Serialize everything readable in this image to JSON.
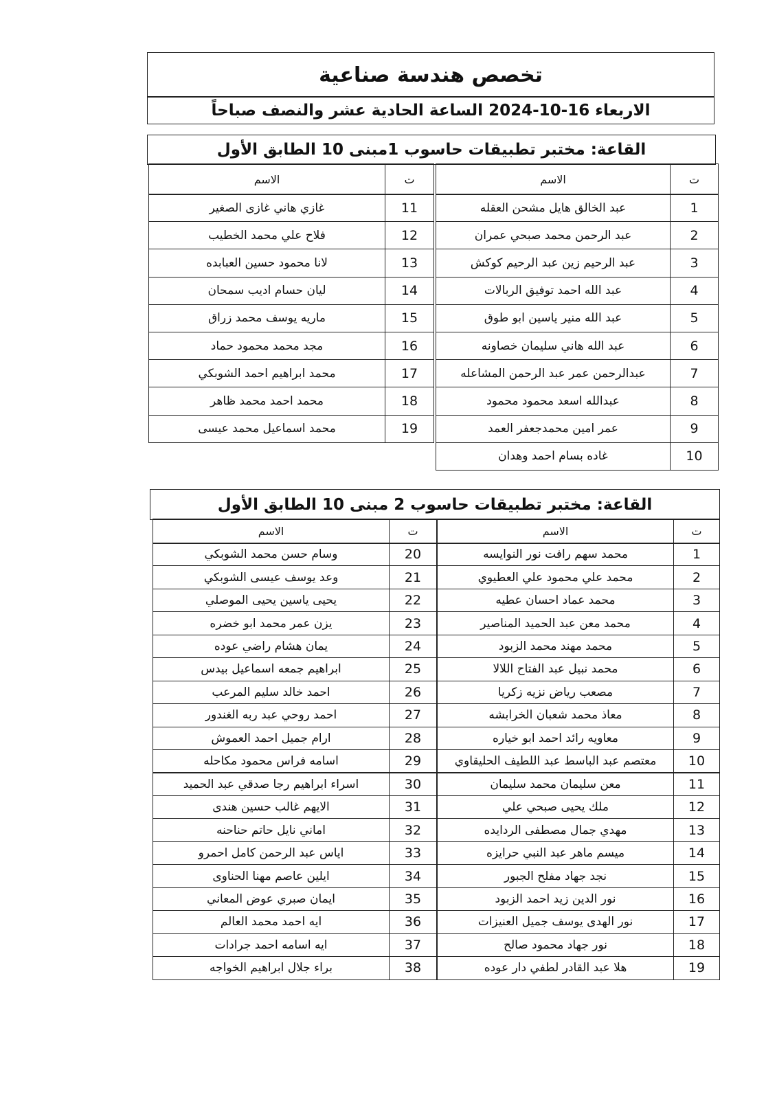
{
  "header": {
    "title": "تخصص هندسة صناعية",
    "subtitle": "الاربعاء 16-10-2024  الساعة الحادية عشر والنصف صباحاً"
  },
  "halls": [
    {
      "title": "القاعة: مختبر تطبيقات حاسوب 1مبنى 10 الطابق الأول",
      "right_header": [
        "ت",
        "الاسم"
      ],
      "left_header": [
        "ت",
        "الاسم"
      ],
      "right": [
        {
          "number": 1,
          "name": "عبد الخالق هايل مشحن العقله"
        },
        {
          "number": 2,
          "name": "عبد الرحمن محمد صبحي عمران"
        },
        {
          "number": 3,
          "name": "عبد الرحيم زين عبد الرحيم كوكش"
        },
        {
          "number": 4,
          "name": "عبد الله احمد توفيق الربالات"
        },
        {
          "number": 5,
          "name": "عبد الله منير ياسين ابو طوق"
        },
        {
          "number": 6,
          "name": "عبد الله هاني سليمان خصاونه"
        },
        {
          "number": 7,
          "name": "عبدالرحمن عمر عبد الرحمن المشاعله"
        },
        {
          "number": 8,
          "name": "عبدالله اسعد محمود محمود"
        },
        {
          "number": 9,
          "name": "عمر امين محمدجعفر العمد"
        },
        {
          "number": 10,
          "name": "غاده بسام احمد وهدان"
        }
      ],
      "left": [
        {
          "number": 11,
          "name": "غازي هاني غازى الصغير"
        },
        {
          "number": 12,
          "name": "فلاح علي محمد الخطيب"
        },
        {
          "number": 13,
          "name": "لانا محمود حسين العبابده"
        },
        {
          "number": 14,
          "name": "ليان حسام اديب سمحان"
        },
        {
          "number": 15,
          "name": "ماريه يوسف محمد زراق"
        },
        {
          "number": 16,
          "name": "مجد محمد محمود حماد"
        },
        {
          "number": 17,
          "name": "محمد ابراهيم احمد الشوبكي"
        },
        {
          "number": 18,
          "name": "محمد احمد محمد ظاهر"
        },
        {
          "number": 19,
          "name": "محمد اسماعيل محمد عيسى"
        }
      ]
    },
    {
      "title": "القاعة: مختبر تطبيقات حاسوب 2 مبنى 10 الطابق الأول",
      "right_header": [
        "ت",
        "الاسم"
      ],
      "left_header": [
        "ت",
        "الاسم"
      ],
      "right": [
        {
          "number": 1,
          "name": "محمد سهم رافت نور النوايسه"
        },
        {
          "number": 2,
          "name": "محمد علي محمود علي العطيوي"
        },
        {
          "number": 3,
          "name": "محمد عماد احسان عطيه"
        },
        {
          "number": 4,
          "name": "محمد معن عبد الحميد المناصير"
        },
        {
          "number": 5,
          "name": "محمد مهند محمد الزبود"
        },
        {
          "number": 6,
          "name": "محمد نبيل عبد الفتاح اللالا"
        },
        {
          "number": 7,
          "name": "مصعب رياض نزيه زكريا"
        },
        {
          "number": 8,
          "name": "معاذ محمد شعبان الخرابشه"
        },
        {
          "number": 9,
          "name": "معاويه رائد احمد ابو خياره"
        },
        {
          "number": 10,
          "name": "معتصم عبد الباسط عبد اللطيف الحليقاوي"
        },
        {
          "number": 11,
          "name": "معن سليمان محمد سليمان"
        },
        {
          "number": 12,
          "name": "ملك يحيى صبحي علي"
        },
        {
          "number": 13,
          "name": "مهدي جمال مصطفى الردايده"
        },
        {
          "number": 14,
          "name": "ميسم ماهر عبد النبي حرايزه"
        },
        {
          "number": 15,
          "name": "نجد جهاد مفلح الجبور"
        },
        {
          "number": 16,
          "name": "نور الدين زيد احمد الزبود"
        },
        {
          "number": 17,
          "name": "نور الهدى يوسف جميل العنيزات"
        },
        {
          "number": 18,
          "name": "نور جهاد محمود صالح"
        },
        {
          "number": 19,
          "name": "هلا عبد القادر لطفي دار عوده"
        }
      ],
      "left": [
        {
          "number": 20,
          "name": "وسام حسن محمد الشوبكي"
        },
        {
          "number": 21,
          "name": "وعد يوسف عيسى الشوبكي"
        },
        {
          "number": 22,
          "name": "يحيى ياسين يحيى الموصلي"
        },
        {
          "number": 23,
          "name": "يزن عمر محمد ابو خضره"
        },
        {
          "number": 24,
          "name": "يمان هشام راضي عوده"
        },
        {
          "number": 25,
          "name": "ابراهيم جمعه اسماعيل بيدس"
        },
        {
          "number": 26,
          "name": "احمد خالد سليم المرعب"
        },
        {
          "number": 27,
          "name": "احمد روحي عبد ربه الغندور"
        },
        {
          "number": 28,
          "name": "ارام جميل احمد العموش"
        },
        {
          "number": 29,
          "name": "اسامه فراس محمود مكاحله"
        },
        {
          "number": 30,
          "name": "اسراء ابراهيم رجا صدقي عبد الحميد"
        },
        {
          "number": 31,
          "name": "الايهم غالب حسين هندى"
        },
        {
          "number": 32,
          "name": "اماني نايل حاتم حناحنه"
        },
        {
          "number": 33,
          "name": "اياس عبد الرحمن كامل احمرو"
        },
        {
          "number": 34,
          "name": "ايلين عاصم مهنا الحناوى"
        },
        {
          "number": 35,
          "name": "ايمان صبري عوض المعاني"
        },
        {
          "number": 36,
          "name": "ايه احمد محمد العالم"
        },
        {
          "number": 37,
          "name": "ايه اسامه احمد جرادات"
        },
        {
          "number": 38,
          "name": "براء جلال ابراهيم الخواجه"
        }
      ]
    }
  ]
}
